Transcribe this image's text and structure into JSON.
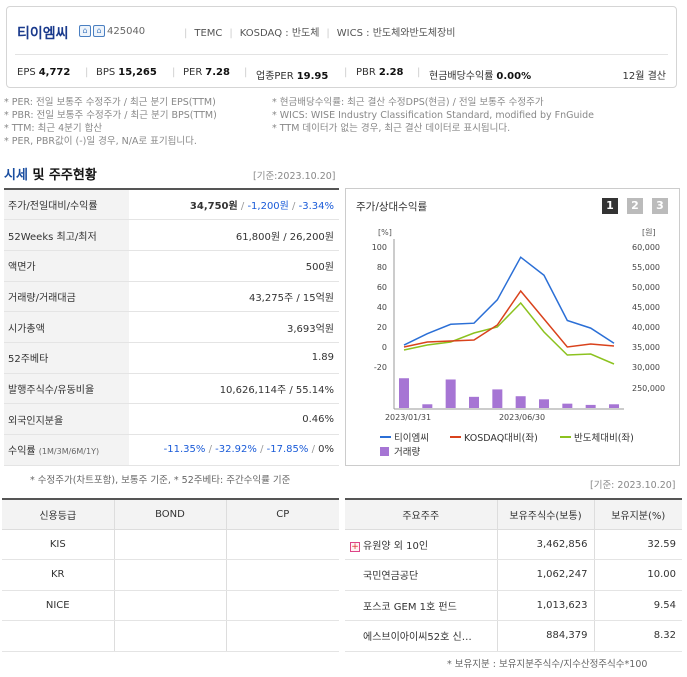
{
  "header": {
    "company_name": "티이엠씨",
    "code": "425040",
    "eng_name": "TEMC",
    "market": "KOSDAQ : 반도체",
    "wics": "WICS : 반도체와반도체장비",
    "indicators": [
      {
        "label": "EPS",
        "value": "4,772"
      },
      {
        "label": "BPS",
        "value": "15,265"
      },
      {
        "label": "PER",
        "value": "7.28"
      },
      {
        "label": "업종PER",
        "value": "19.95"
      },
      {
        "label": "PBR",
        "value": "2.28"
      },
      {
        "label": "현금배당수익률",
        "value": "0.00%"
      }
    ],
    "fiscal": "12월 결산"
  },
  "notes": {
    "per": "* PER: 전일 보통주 수정주가 / 최근 분기 EPS(TTM)",
    "pbr": "* PBR: 전일 보통주 수정주가 / 최근 분기 BPS(TTM)",
    "ttm": "* TTM: 최근 4분기 합산",
    "neg": "* PER, PBR값이 (-)일 경우, N/A로 표기됩니다.",
    "div": "* 현금배당수익률: 최근 결산 수정DPS(현금) / 전일 보통주 수정주가",
    "wics": "* WICS: WISE Industry Classification Standard, modified by FnGuide",
    "ttm_none": "* TTM 데이터가 없는 경우, 최근 결산 데이터로 표시됩니다."
  },
  "market_section": {
    "title_a": "시세",
    "title_b": " 및 주주현황",
    "date": "[기준:2023.10.20]",
    "rows": [
      {
        "label": "주가/전일대비/수익률",
        "v1": "34,750원",
        "v2": "-1,200원",
        "v3": "-3.34%"
      },
      {
        "label": "52Weeks 최고/최저",
        "value": "61,800원 / 26,200원"
      },
      {
        "label": "액면가",
        "value": "500원"
      },
      {
        "label": "거래량/거래대금",
        "value": "43,275주 / 15억원"
      },
      {
        "label": "시가총액",
        "value": "3,693억원"
      },
      {
        "label": "52주베타",
        "value": "1.89"
      },
      {
        "label": "발행주식수/유동비율",
        "value": "10,626,114주 / 55.14%"
      },
      {
        "label": "외국인지분율",
        "value": "0.46%"
      },
      {
        "label": "수익률",
        "sub": "(1M/3M/6M/1Y)",
        "r1": "-11.35%",
        "r2": "-32.92%",
        "r3": "-17.85%",
        "r4": "0%"
      }
    ],
    "footnote": "* 수정주가(차트포함), 보통주 기준, * 52주베타: 주간수익률 기준"
  },
  "chart_panel": {
    "title": "주가/상대수익률",
    "pages": [
      "1",
      "2",
      "3"
    ],
    "left_unit": "[%]",
    "right_unit": "[원]",
    "x_labels": [
      "2023/01/31",
      "2023/06/30"
    ],
    "legend": [
      "티이엠씨",
      "KOSDAQ대비(좌)",
      "반도체대비(좌)",
      "거래량"
    ],
    "colors": {
      "stock": "#2b6fd6",
      "kosdaq": "#d9421c",
      "semi": "#8cc21f",
      "volume": "#a675d4"
    }
  },
  "chart_data": {
    "type": "line",
    "left_axis": {
      "ylim": [
        -20,
        100
      ],
      "ticks": [
        100,
        80,
        60,
        40,
        20,
        0,
        -20
      ]
    },
    "right_axis": {
      "ticks": [
        60000,
        55000,
        50000,
        45000,
        40000,
        35000,
        30000,
        25000
      ],
      "volume_tick": "250,000"
    },
    "x_ticks": [
      "2023/01/31",
      "2023/06/30"
    ],
    "points": 10,
    "series": [
      {
        "name": "티이엠씨",
        "axis": "right",
        "values": [
          34000,
          37000,
          39500,
          39800,
          46000,
          57300,
          52500,
          40500,
          38500,
          34500
        ]
      },
      {
        "name": "KOSDAQ대비(좌)",
        "axis": "left",
        "values": [
          0,
          5,
          6,
          7,
          22,
          56,
          28,
          0,
          3,
          1
        ]
      },
      {
        "name": "반도체대비(좌)",
        "axis": "left",
        "values": [
          -3,
          2,
          5,
          14,
          20,
          44,
          15,
          -8,
          -7,
          -17
        ]
      },
      {
        "name": "거래량",
        "axis": "volume",
        "values": [
          240000,
          30000,
          230000,
          90000,
          150000,
          95000,
          70000,
          35000,
          25000,
          30000
        ]
      }
    ]
  },
  "credit": {
    "headers": [
      "신용등급",
      "BOND",
      "CP"
    ],
    "rows": [
      [
        "KIS",
        "",
        ""
      ],
      [
        "KR",
        "",
        ""
      ],
      [
        "NICE",
        "",
        ""
      ],
      [
        "",
        "",
        ""
      ]
    ]
  },
  "shareholders": {
    "date": "[기준: 2023.10.20]",
    "headers": [
      "주요주주",
      "보유주식수(보통)",
      "보유지분(%)"
    ],
    "rows": [
      {
        "name": "유원양 외 10인",
        "shares": "3,462,856",
        "pct": "32.59"
      },
      {
        "name": "국민연금공단",
        "shares": "1,062,247",
        "pct": "10.00"
      },
      {
        "name": "포스코 GEM 1호 펀드",
        "shares": "1,013,623",
        "pct": "9.54"
      },
      {
        "name": "에스브이아이씨52호 신…",
        "shares": "884,379",
        "pct": "8.32"
      }
    ],
    "footnote": "* 보유지분 : 보유지분주식수/지수산정주식수*100"
  }
}
